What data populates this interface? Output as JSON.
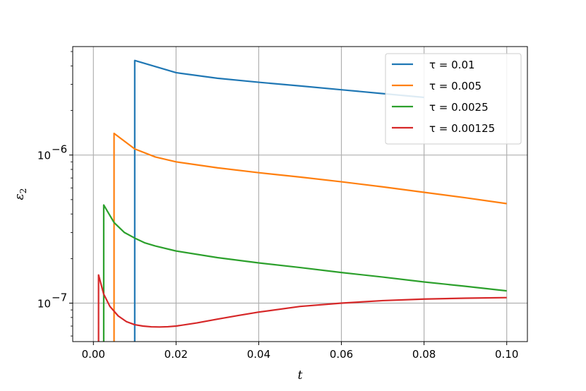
{
  "chart_data": {
    "type": "line",
    "title": "",
    "xlabel": "t",
    "ylabel": "ε",
    "ylabel_sub": "2",
    "xlim": [
      -0.005,
      0.105
    ],
    "ylim": [
      5.5e-08,
      5.4e-06
    ],
    "yscale": "log",
    "grid": true,
    "legend_position": "top-right",
    "x_ticks": [
      0.0,
      0.02,
      0.04,
      0.06,
      0.08,
      0.1
    ],
    "x_tick_labels": [
      "0.00",
      "0.02",
      "0.04",
      "0.06",
      "0.08",
      "0.10"
    ],
    "y_major_ticks": [
      {
        "value": 1e-07,
        "base": "10",
        "exp": "−7"
      },
      {
        "value": 1e-06,
        "base": "10",
        "exp": "−6"
      }
    ],
    "y_minor_ticks": [
      6e-08,
      7e-08,
      8e-08,
      9e-08,
      2e-07,
      3e-07,
      4e-07,
      5e-07,
      6e-07,
      7e-07,
      8e-07,
      9e-07,
      2e-06,
      3e-06,
      4e-06,
      5e-06
    ],
    "series": [
      {
        "name": "τ = 0.01",
        "color": "#1f77b4",
        "x": [
          0.01,
          0.01,
          0.02,
          0.03,
          0.04,
          0.05,
          0.06,
          0.07,
          0.08
        ],
        "y": [
          5.5e-08,
          4.35e-06,
          3.6e-06,
          3.3e-06,
          3.1e-06,
          2.93e-06,
          2.76e-06,
          2.6e-06,
          2.45e-06
        ]
      },
      {
        "name": "τ = 0.005",
        "color": "#ff7f0e",
        "x": [
          0.005,
          0.005,
          0.01,
          0.015,
          0.02,
          0.03,
          0.04,
          0.05,
          0.06,
          0.07,
          0.08,
          0.09,
          0.1
        ],
        "y": [
          5.5e-08,
          1.4e-06,
          1.1e-06,
          9.7e-07,
          9e-07,
          8.2e-07,
          7.6e-07,
          7.1e-07,
          6.6e-07,
          6.1e-07,
          5.6e-07,
          5.15e-07,
          4.7e-07
        ]
      },
      {
        "name": "τ = 0.0025",
        "color": "#2ca02c",
        "x": [
          0.0025,
          0.0025,
          0.005,
          0.0075,
          0.01,
          0.0125,
          0.015,
          0.02,
          0.03,
          0.04,
          0.05,
          0.06,
          0.07,
          0.08,
          0.09,
          0.1
        ],
        "y": [
          5.5e-08,
          4.6e-07,
          3.5e-07,
          3e-07,
          2.75e-07,
          2.55e-07,
          2.43e-07,
          2.25e-07,
          2.03e-07,
          1.87e-07,
          1.74e-07,
          1.61e-07,
          1.5e-07,
          1.39e-07,
          1.3e-07,
          1.21e-07
        ]
      },
      {
        "name": "τ = 0.00125",
        "color": "#d62728",
        "x": [
          0.00125,
          0.00125,
          0.0025,
          0.004,
          0.006,
          0.008,
          0.01,
          0.012,
          0.014,
          0.016,
          0.018,
          0.02,
          0.025,
          0.03,
          0.035,
          0.04,
          0.05,
          0.06,
          0.07,
          0.08,
          0.09,
          0.1
        ],
        "y": [
          5.5e-08,
          1.55e-07,
          1.15e-07,
          9.5e-08,
          8.2e-08,
          7.5e-08,
          7.15e-08,
          7e-08,
          6.92e-08,
          6.9e-08,
          6.93e-08,
          7e-08,
          7.35e-08,
          7.8e-08,
          8.25e-08,
          8.7e-08,
          9.5e-08,
          1e-07,
          1.04e-07,
          1.065e-07,
          1.08e-07,
          1.09e-07
        ]
      }
    ]
  }
}
